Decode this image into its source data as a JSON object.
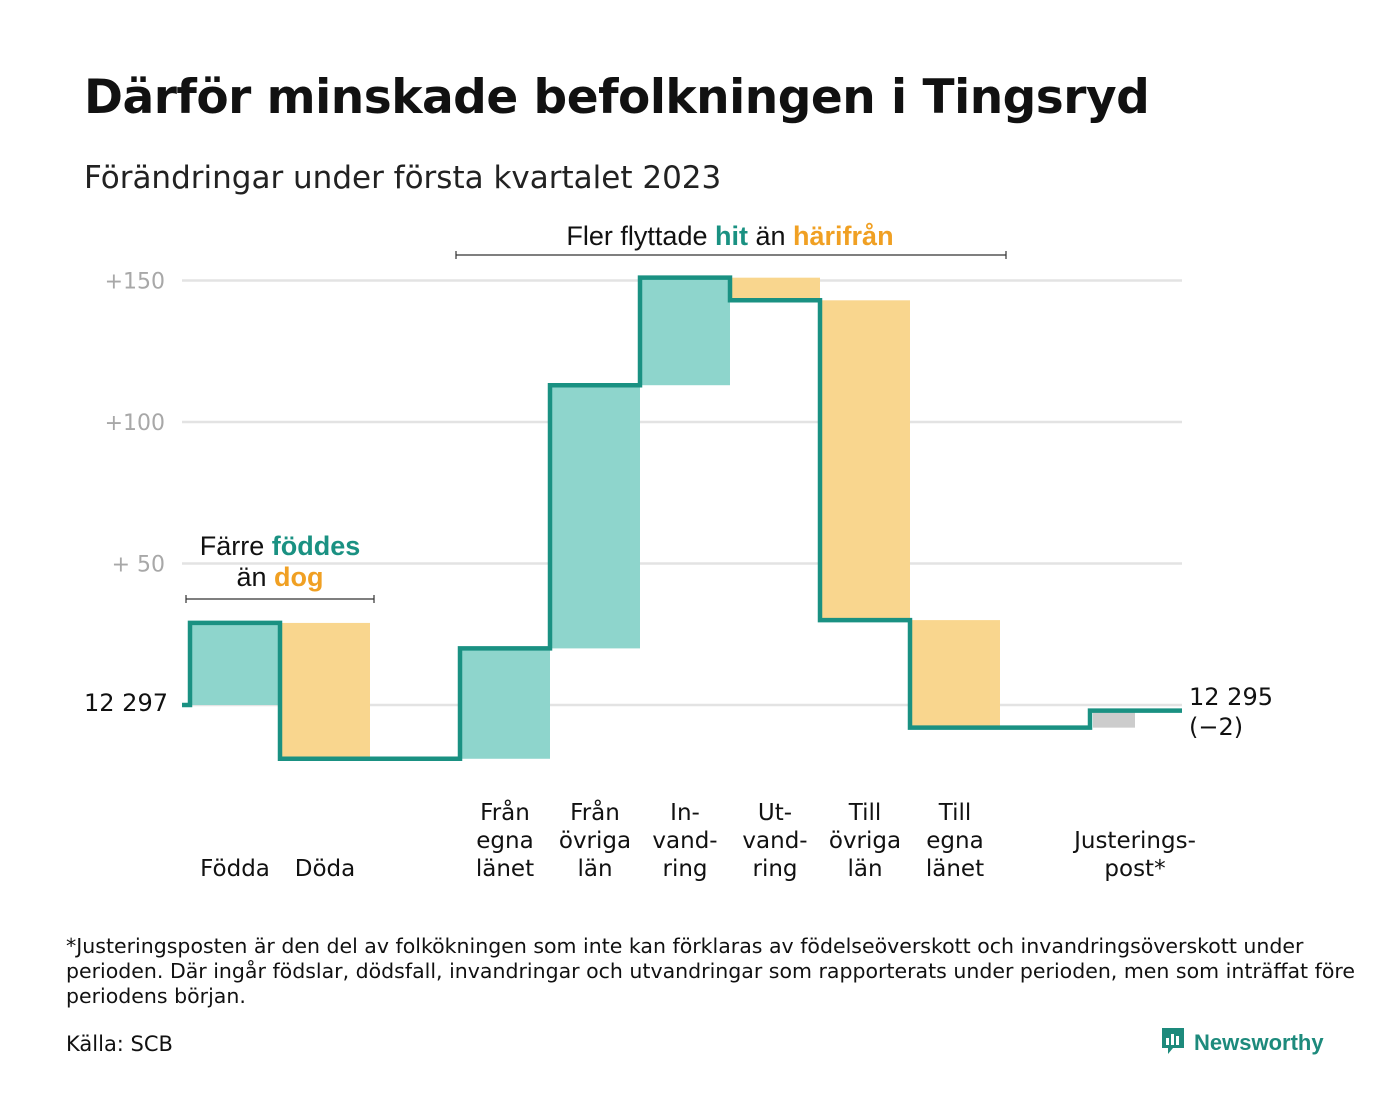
{
  "title": "Därför minskade befolkningen i Tingsryd",
  "subtitle": "Förändringar under första kvartalet 2023",
  "colors": {
    "inflow": "#8ed5cc",
    "outflow": "#f9d68e",
    "adjustment": "#cccccc",
    "step_line": "#1a9182",
    "hit_text": "#1a9182",
    "away_text": "#f0a023",
    "grid": "#e3e3e3"
  },
  "chart_data": {
    "type": "waterfall",
    "start_value": 12297,
    "start_label": "12 297",
    "end_label_line1": "12 295",
    "end_label_line2": "(−2)",
    "ylim": [
      -20,
      152
    ],
    "y_ticks": [
      {
        "value": 150,
        "label": "+150"
      },
      {
        "value": 100,
        "label": "+100"
      },
      {
        "value": 50,
        "label": "+ 50"
      }
    ],
    "grid_values": [
      150,
      100,
      50,
      0
    ],
    "steps": [
      {
        "lines": [
          "",
          "",
          "Födda"
        ],
        "delta": 29,
        "kind": "inflow"
      },
      {
        "lines": [
          "",
          "",
          "Döda"
        ],
        "delta": -48,
        "kind": "outflow"
      },
      {
        "lines": [
          "",
          "",
          ""
        ],
        "delta": 0,
        "kind": "none"
      },
      {
        "lines": [
          "Från",
          "egna",
          "länet"
        ],
        "delta": 39,
        "kind": "inflow"
      },
      {
        "lines": [
          "Från",
          "övriga",
          "län"
        ],
        "delta": 93,
        "kind": "inflow"
      },
      {
        "lines": [
          "In-",
          "vand-",
          "ring"
        ],
        "delta": 38,
        "kind": "inflow"
      },
      {
        "lines": [
          "Ut-",
          "vand-",
          "ring"
        ],
        "delta": -8,
        "kind": "outflow"
      },
      {
        "lines": [
          "Till",
          "övriga",
          "län"
        ],
        "delta": -113,
        "kind": "outflow"
      },
      {
        "lines": [
          "Till",
          "egna",
          "länet"
        ],
        "delta": -38,
        "kind": "outflow"
      },
      {
        "lines": [
          "",
          "",
          ""
        ],
        "delta": 0,
        "kind": "none"
      },
      {
        "lines": [
          "",
          "Justerings-",
          "post*"
        ],
        "delta": 6,
        "kind": "adjustment"
      }
    ],
    "annotations": {
      "births": {
        "pre": "Färre ",
        "hi1": "föddes",
        "line2_pre": "än ",
        "hi2": "dog"
      },
      "moves": {
        "pre": "Fler flyttade ",
        "hi1": "hit",
        "mid": " än ",
        "hi2": "härifrån"
      }
    }
  },
  "footnote": "*Justeringsposten är den del av folkökningen som inte kan förklaras av födelseöverskott och invandringsöverskott under perioden. Där ingår födslar, dödsfall, invandringar och utvandringar som rapporterats under perioden, men som inträffat före periodens början.",
  "source": "Källa: SCB",
  "brand": {
    "name": "Newsworthy",
    "logo_icon": "newsworthy-logo-icon"
  }
}
